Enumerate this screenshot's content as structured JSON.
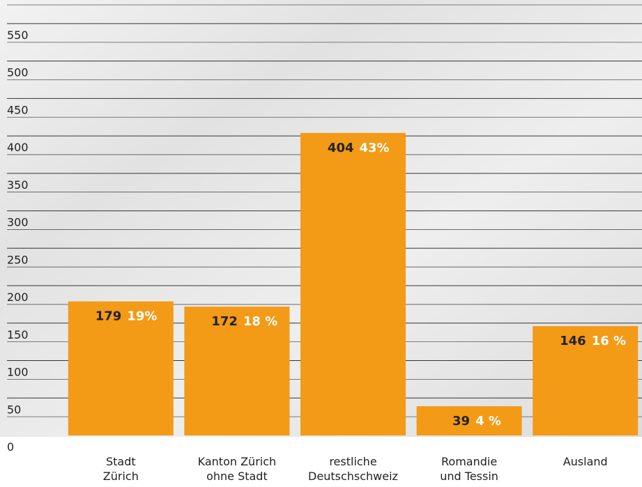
{
  "chart_data": {
    "type": "bar",
    "categories": [
      [
        "Stadt",
        "Zürich"
      ],
      [
        "Kanton Zürich",
        "ohne Stadt"
      ],
      [
        "restliche",
        "Deutschschweiz"
      ],
      [
        "Romandie",
        "und Tessin"
      ],
      [
        "Ausland"
      ]
    ],
    "series": [
      {
        "values": [
          179,
          172,
          404,
          39,
          146
        ],
        "color": "#f39a17"
      },
      {
        "values": [
          19,
          18,
          43,
          4,
          16
        ],
        "value_labels": [
          "19%",
          "18 %",
          "43%",
          "4 %",
          "16 %"
        ]
      }
    ],
    "ylim": [
      0,
      575
    ],
    "yticks": [
      0,
      50,
      100,
      150,
      200,
      250,
      300,
      350,
      400,
      450,
      500,
      550
    ],
    "minor_yticks": [
      25,
      75,
      125,
      175,
      225,
      275,
      325,
      375,
      425,
      475,
      525,
      575
    ],
    "grid": true
  }
}
